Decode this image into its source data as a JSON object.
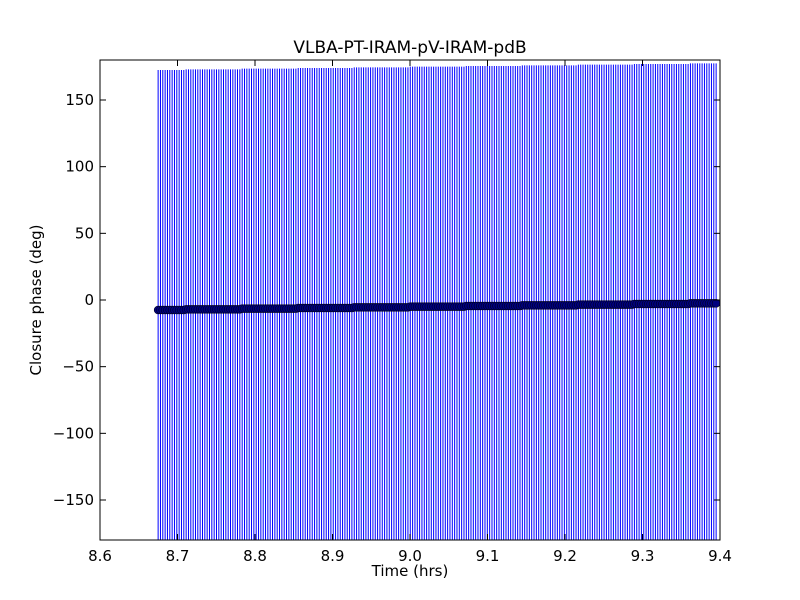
{
  "chart_data": {
    "type": "scatter",
    "title": "VLBA-PT-IRAM-pV-IRAM-pdB",
    "xlabel": "Time (hrs)",
    "ylabel": "Closure phase (deg)",
    "xlim": [
      8.6,
      9.4
    ],
    "ylim": [
      -180,
      180
    ],
    "xticks": [
      "8.6",
      "8.7",
      "8.8",
      "8.9",
      "9.0",
      "9.1",
      "9.2",
      "9.3",
      "9.4"
    ],
    "yticks": [
      "150",
      "100",
      "50",
      "0",
      "−50",
      "−100",
      "−150"
    ],
    "grid": false,
    "series": [
      {
        "x_start": 8.675,
        "x_end": 9.395,
        "n_points": 240,
        "y_start": -7.5,
        "y_end": -2.5,
        "error_bar": 180,
        "color": "#0000ff",
        "marker_color": "#00007f",
        "marker": "circle"
      }
    ]
  }
}
